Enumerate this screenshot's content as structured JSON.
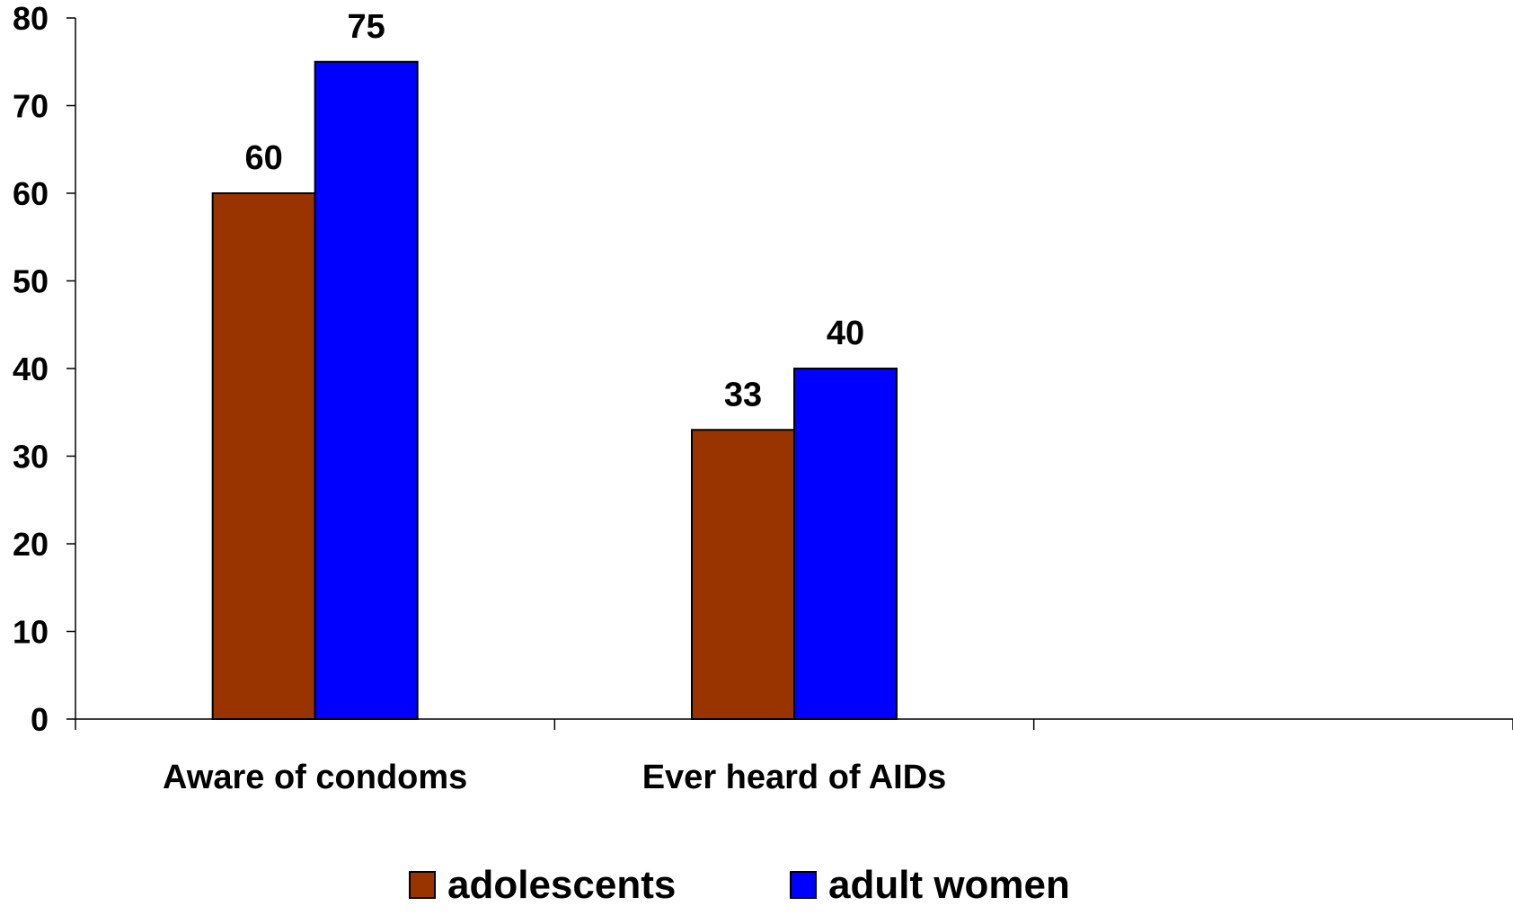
{
  "chart_data": {
    "type": "bar",
    "title": "",
    "xlabel": "",
    "ylabel": "",
    "categories": [
      "Aware of condoms",
      "Ever heard of AIDs",
      ""
    ],
    "series": [
      {
        "name": "adolescents",
        "values": [
          60,
          33,
          null
        ],
        "color": "#993300"
      },
      {
        "name": "adult women",
        "values": [
          75,
          40,
          null
        ],
        "color": "#0000FF"
      }
    ],
    "ylim": [
      0,
      80
    ],
    "yticks": [
      0,
      10,
      20,
      30,
      40,
      50,
      60,
      70,
      80
    ],
    "grid": false,
    "legend": "bottom",
    "data_labels": true
  }
}
